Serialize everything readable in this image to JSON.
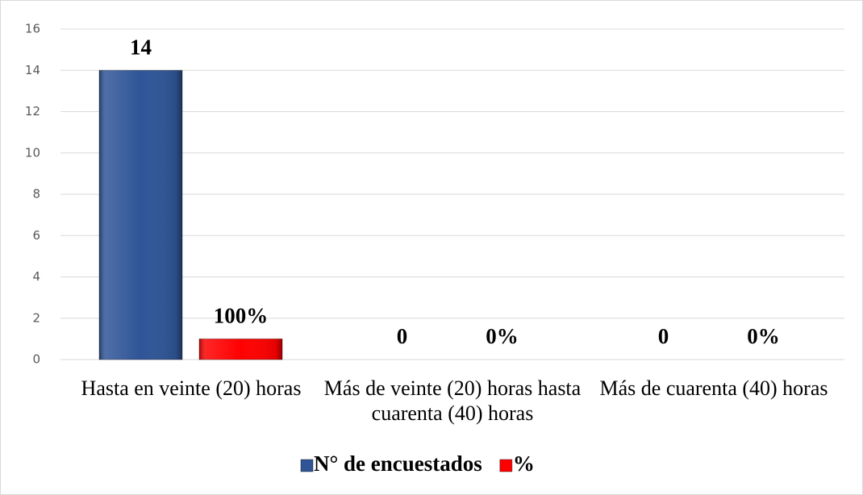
{
  "chart_data": {
    "type": "bar",
    "categories": [
      "Hasta en veinte (20) horas",
      "Más de veinte (20) horas hasta cuarenta (40) horas",
      "Más de cuarenta (40) horas"
    ],
    "series": [
      {
        "name": "N° de encuestados",
        "color": "#2f5597",
        "values": [
          14,
          0,
          0
        ]
      },
      {
        "name": "%",
        "color": "#ff0000",
        "values": [
          1,
          0,
          0
        ],
        "value_labels": [
          "100%",
          "0%",
          "0%"
        ]
      }
    ],
    "ylim": [
      0,
      16
    ],
    "yticks": [
      0,
      2,
      4,
      6,
      8,
      10,
      12,
      14,
      16
    ],
    "grid": true,
    "legend": "bottom"
  }
}
